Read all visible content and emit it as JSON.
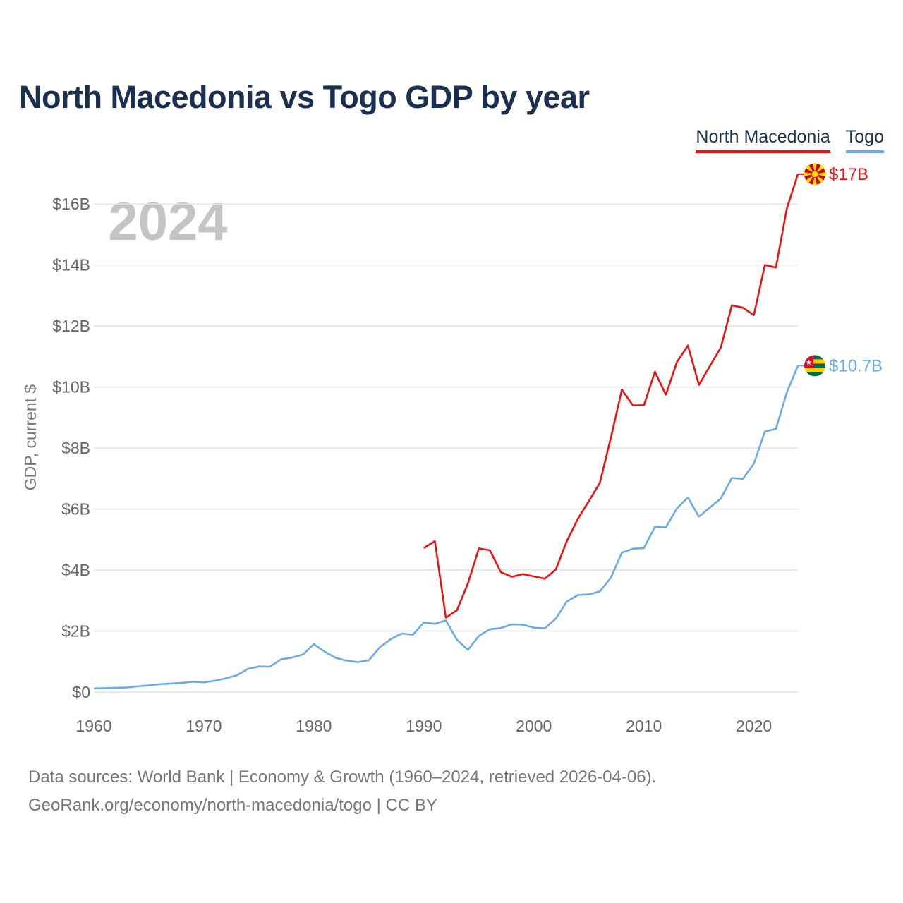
{
  "title": "North Macedonia vs Togo GDP by year",
  "legend": [
    "North Macedonia",
    "Togo"
  ],
  "year_watermark": "2024",
  "footer": {
    "line1": "Data sources: World Bank | Economy & Growth (1960–2024, retrieved 2026-04-06).",
    "line2": "GeoRank.org/economy/north-macedonia/togo | CC BY"
  },
  "colors": {
    "north_macedonia": "#ee1111",
    "togo": "#6aabe6",
    "title": "#1b3050"
  },
  "chart_data": {
    "type": "line",
    "title": "North Macedonia vs Togo GDP by year",
    "ylabel": "GDP, current $",
    "xlabel": "",
    "xlim": [
      1960,
      2024
    ],
    "ylim": [
      0,
      17
    ],
    "x_ticks": [
      1960,
      1970,
      1980,
      1990,
      2000,
      2010,
      2020
    ],
    "y_ticks": [
      0,
      2,
      4,
      6,
      8,
      10,
      12,
      14,
      16
    ],
    "y_tick_labels": [
      "$0",
      "$2B",
      "$4B",
      "$6B",
      "$8B",
      "$10B",
      "$12B",
      "$14B",
      "$16B"
    ],
    "series": [
      {
        "name": "North Macedonia",
        "color": "#ee1111",
        "end_label": "$17B",
        "x": [
          1990,
          1991,
          1992,
          1993,
          1994,
          1995,
          1996,
          1997,
          1998,
          1999,
          2000,
          2001,
          2002,
          2003,
          2004,
          2005,
          2006,
          2007,
          2008,
          2009,
          2010,
          2011,
          2012,
          2013,
          2014,
          2015,
          2016,
          2017,
          2018,
          2019,
          2020,
          2021,
          2022,
          2023,
          2024
        ],
        "values": [
          4.72,
          4.95,
          2.44,
          2.68,
          3.56,
          4.71,
          4.65,
          3.93,
          3.78,
          3.87,
          3.79,
          3.72,
          4.02,
          4.95,
          5.68,
          6.26,
          6.86,
          8.34,
          9.91,
          9.4,
          9.4,
          10.5,
          9.75,
          10.82,
          11.36,
          10.07,
          10.69,
          11.3,
          12.68,
          12.6,
          12.36,
          14.0,
          13.92,
          15.86,
          16.98
        ]
      },
      {
        "name": "Togo",
        "color": "#6aabe6",
        "end_label": "$10.7B",
        "x": [
          1960,
          1961,
          1962,
          1963,
          1964,
          1965,
          1966,
          1967,
          1968,
          1969,
          1970,
          1971,
          1972,
          1973,
          1974,
          1975,
          1976,
          1977,
          1978,
          1979,
          1980,
          1981,
          1982,
          1983,
          1984,
          1985,
          1986,
          1987,
          1988,
          1989,
          1990,
          1991,
          1992,
          1993,
          1994,
          1995,
          1996,
          1997,
          1998,
          1999,
          2000,
          2001,
          2002,
          2003,
          2004,
          2005,
          2006,
          2007,
          2008,
          2009,
          2010,
          2011,
          2012,
          2013,
          2014,
          2015,
          2016,
          2017,
          2018,
          2019,
          2020,
          2021,
          2022,
          2023,
          2024
        ],
        "values": [
          0.12,
          0.13,
          0.14,
          0.15,
          0.19,
          0.22,
          0.26,
          0.28,
          0.3,
          0.34,
          0.32,
          0.37,
          0.45,
          0.55,
          0.76,
          0.84,
          0.83,
          1.07,
          1.13,
          1.23,
          1.57,
          1.32,
          1.12,
          1.03,
          0.98,
          1.04,
          1.47,
          1.74,
          1.92,
          1.88,
          2.28,
          2.24,
          2.35,
          1.72,
          1.38,
          1.84,
          2.06,
          2.1,
          2.22,
          2.21,
          2.11,
          2.09,
          2.41,
          2.97,
          3.18,
          3.2,
          3.3,
          3.75,
          4.57,
          4.7,
          4.72,
          5.42,
          5.4,
          6.02,
          6.38,
          5.75,
          6.05,
          6.35,
          7.02,
          6.99,
          7.49,
          8.54,
          8.63,
          9.83,
          10.7
        ]
      }
    ]
  }
}
